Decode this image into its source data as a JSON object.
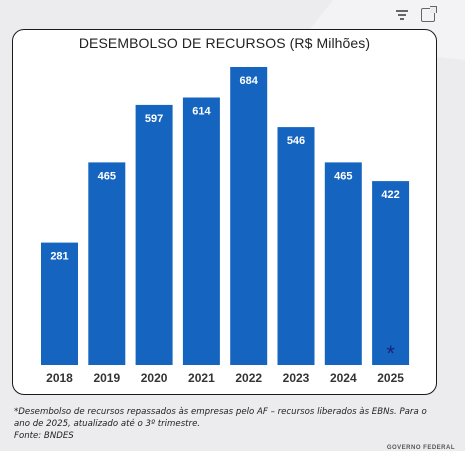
{
  "toolbar": {
    "filter_icon": "filter-icon",
    "expand_icon": "expand-icon"
  },
  "chart_data": {
    "type": "bar",
    "title": "DESEMBOLSO DE RECURSOS (R$ Milhões)",
    "categories": [
      "2018",
      "2019",
      "2020",
      "2021",
      "2022",
      "2023",
      "2024",
      "2025"
    ],
    "values": [
      281,
      465,
      597,
      614,
      684,
      546,
      465,
      422
    ],
    "value_labels": [
      "281",
      "465",
      "597",
      "614",
      "684",
      "546",
      "465",
      "422"
    ],
    "annotations": [
      {
        "category": "2025",
        "text": "*"
      }
    ],
    "xlabel": "",
    "ylabel": "",
    "ylim": [
      0,
      700
    ],
    "grid": false,
    "bar_color": "#1565c0",
    "label_color": "#ffffff",
    "annotation_color": "#1a237e"
  },
  "footnote": {
    "line1": "*Desembolso de recursos repassados às empresas pelo AF – recursos liberados às EBNs. Para o",
    "line2": "ano de 2025, atualizado até o 3º trimestre.",
    "source": "Fonte: BNDES"
  },
  "brand": "GOVERNO FEDERAL"
}
